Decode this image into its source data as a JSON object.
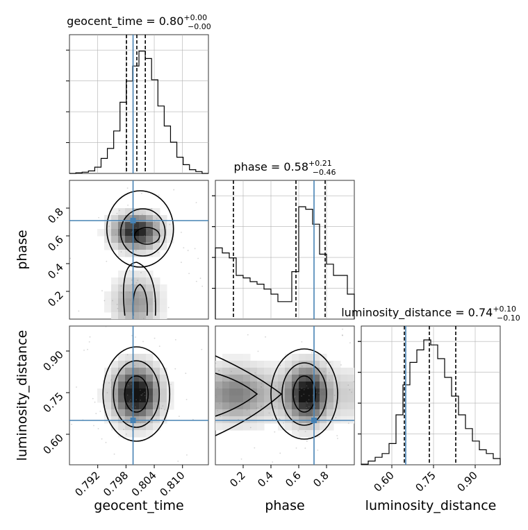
{
  "colors": {
    "truth": "#4682b4",
    "step": "#000000",
    "grid": "#b0b0b0",
    "point": "#888888"
  },
  "chart_data": {
    "type": "corner",
    "parameters": [
      "geocent_time",
      "phase",
      "luminosity_distance"
    ],
    "truths": [
      0.7995,
      0.71,
      0.65
    ],
    "ranges": [
      [
        0.786,
        0.8155
      ],
      [
        0.0,
        1.0
      ],
      [
        0.49,
        0.99
      ]
    ],
    "diagonal_titles": {
      "geocent_time": {
        "value": "0.80",
        "plus": "+0.00",
        "minus": "−0.00"
      },
      "phase": {
        "value": "0.58",
        "plus": "+0.21",
        "minus": "−0.46"
      },
      "luminosity_distance": {
        "value": "0.74",
        "plus": "+0.10",
        "minus": "−0.10"
      }
    },
    "quantiles": {
      "geocent_time": [
        0.7981,
        0.8003,
        0.8021
      ],
      "phase": [
        0.13,
        0.58,
        0.79
      ],
      "luminosity_distance": [
        0.645,
        0.735,
        0.83
      ]
    },
    "ticks": {
      "geocent_time": [
        "0.792",
        "0.798",
        "0.804",
        "0.810"
      ],
      "phase": [
        "0.2",
        "0.4",
        "0.6",
        "0.8"
      ],
      "luminosity_distance": [
        "0.60",
        "0.75",
        "0.90"
      ]
    },
    "tick_values": {
      "geocent_time": [
        0.792,
        0.798,
        0.804,
        0.81
      ],
      "phase": [
        0.2,
        0.4,
        0.6,
        0.8
      ],
      "luminosity_distance": [
        0.6,
        0.75,
        0.9
      ]
    },
    "histograms": {
      "geocent_time": [
        0.0,
        0.005,
        0.01,
        0.02,
        0.05,
        0.12,
        0.2,
        0.34,
        0.57,
        0.74,
        0.86,
        0.98,
        0.92,
        0.75,
        0.54,
        0.38,
        0.25,
        0.13,
        0.07,
        0.03,
        0.015,
        0.0
      ],
      "phase": [
        0.57,
        0.53,
        0.49,
        0.35,
        0.33,
        0.3,
        0.28,
        0.24,
        0.2,
        0.14,
        0.14,
        0.38,
        0.9,
        0.88,
        0.76,
        0.52,
        0.44,
        0.35,
        0.35,
        0.2
      ],
      "luminosity_distance": [
        0.005,
        0.03,
        0.06,
        0.09,
        0.17,
        0.4,
        0.64,
        0.82,
        0.92,
        1.0,
        0.96,
        0.85,
        0.7,
        0.55,
        0.4,
        0.29,
        0.19,
        0.12,
        0.09,
        0.05
      ]
    },
    "grid": true
  }
}
